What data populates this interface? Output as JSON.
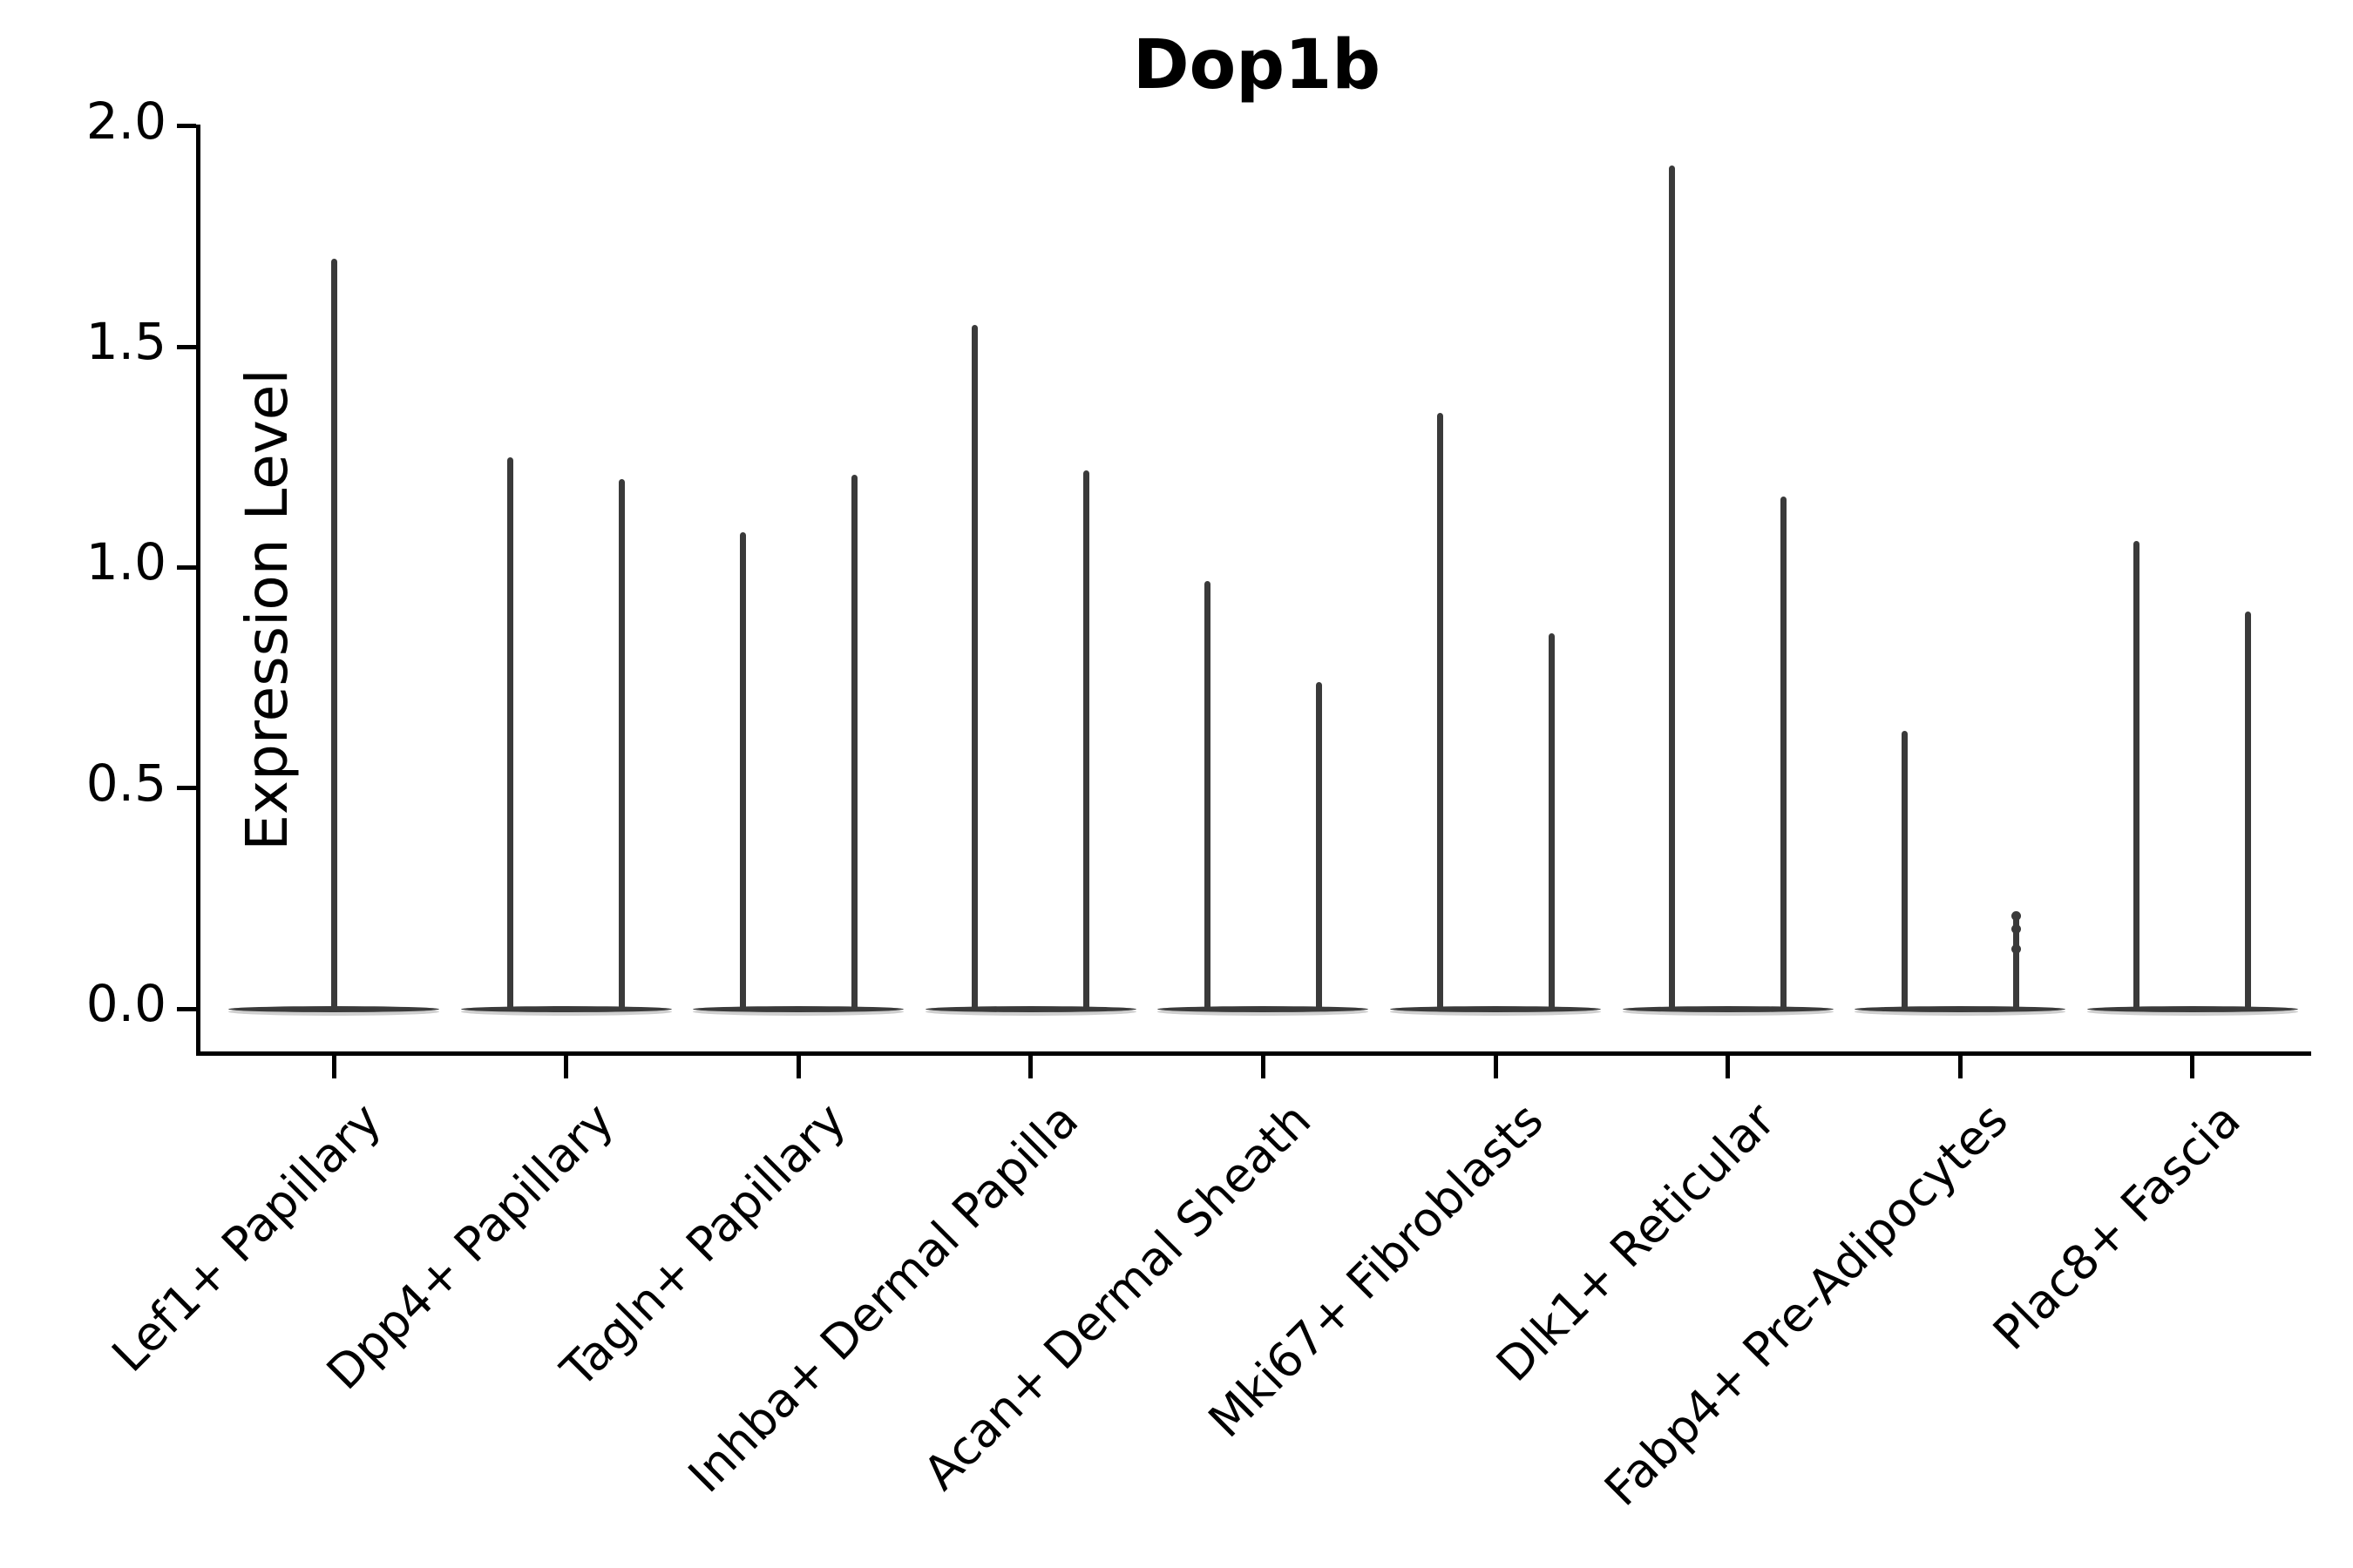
{
  "chart_data": {
    "type": "violin",
    "title": "Dop1b",
    "xlabel": "",
    "ylabel": "Expression Level",
    "ylim": [
      0.0,
      2.0
    ],
    "yticks": [
      {
        "value": 2.0,
        "label": "2.0"
      },
      {
        "value": 1.5,
        "label": "1.5"
      },
      {
        "value": 1.0,
        "label": "1.0"
      },
      {
        "value": 0.5,
        "label": "0.5"
      },
      {
        "value": 0.0,
        "label": "0.0"
      }
    ],
    "grid": false,
    "legend": "none",
    "categories": [
      "Lef1+ Papillary",
      "Dpp4+ Papillary",
      "Tagln+ Papillary",
      "Inhba+ Dermal Papilla",
      "Acan+ Dermal Sheath",
      "Mki67+ Fibroblasts",
      "Dlk1+ Reticular",
      "Fabp4+ Pre-Adipocytes",
      "Plac8+ Fascia"
    ],
    "violin_description": "Each category shows narrow violins: a flat base at expression 0 with thin vertical density spikes reaching the maximum expression value. Lef1+ Papillary has a single centered spike; all other categories have two spikes.",
    "series": [
      {
        "category": "Lef1+ Papillary",
        "spike_maxima": [
          1.7
        ]
      },
      {
        "category": "Dpp4+ Papillary",
        "spike_maxima": [
          1.25,
          1.2
        ]
      },
      {
        "category": "Tagln+ Papillary",
        "spike_maxima": [
          1.08,
          1.21
        ]
      },
      {
        "category": "Inhba+ Dermal Papilla",
        "spike_maxima": [
          1.55,
          1.22
        ]
      },
      {
        "category": "Acan+ Dermal Sheath",
        "spike_maxima": [
          0.97,
          0.74
        ]
      },
      {
        "category": "Mki67+ Fibroblasts",
        "spike_maxima": [
          1.35,
          0.85
        ]
      },
      {
        "category": "Dlk1+ Reticular",
        "spike_maxima": [
          1.91,
          1.16
        ]
      },
      {
        "category": "Fabp4+ Pre-Adipocytes",
        "spike_maxima": [
          0.63,
          0.22
        ],
        "dots": {
          "violin_index": 1,
          "values": [
            0.21,
            0.18,
            0.135
          ]
        }
      },
      {
        "category": "Plac8+ Fascia",
        "spike_maxima": [
          1.06,
          0.9
        ]
      }
    ],
    "colors": {
      "violin": "#3a3a3a",
      "violin_fill_edge": "#cfcfcf",
      "axis": "#000000",
      "text": "#000000"
    }
  }
}
